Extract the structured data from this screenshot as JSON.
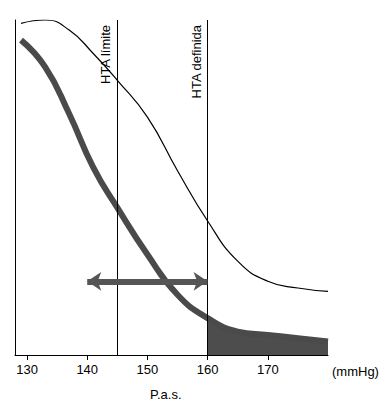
{
  "chart_data": {
    "type": "line",
    "x_label": "P.a.s.",
    "x_unit": "(mmHg)",
    "x": [
      129,
      133,
      137,
      141,
      145,
      150,
      155,
      160,
      165,
      170,
      175,
      180
    ],
    "series": [
      {
        "values": [
          94,
          86,
          72,
          56,
          44,
          30,
          18,
          11,
          7,
          6,
          5,
          4
        ],
        "color": "#4a4a4a",
        "line_style": "thick"
      },
      {
        "values": [
          99,
          100,
          97,
          90,
          82,
          71,
          55,
          40,
          28,
          22,
          20,
          19
        ],
        "color": "#000000",
        "line_style": "thin"
      }
    ],
    "xlim": [
      128,
      180
    ],
    "xticks": [
      130,
      140,
      150,
      160,
      170
    ],
    "ylim": [
      0,
      100
    ],
    "tick_labels": "x",
    "grid": false,
    "annotations": [
      {
        "text": "HTA límite",
        "x": 145
      },
      {
        "text": "HTA definida",
        "x": 160
      }
    ],
    "arrow": {
      "x": [
        140,
        160
      ],
      "y": 22
    },
    "shaded": {
      "x": [
        160,
        180
      ]
    }
  }
}
